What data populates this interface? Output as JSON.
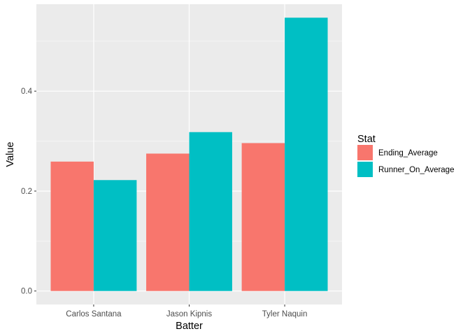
{
  "chart_data": {
    "type": "bar",
    "title": "",
    "xlabel": "Batter",
    "ylabel": "Value",
    "categories": [
      "Carlos Santana",
      "Jason Kipnis",
      "Tyler Naquin"
    ],
    "series": [
      {
        "name": "Ending_Average",
        "color": "#F8766D",
        "values": [
          0.259,
          0.275,
          0.296
        ]
      },
      {
        "name": "Runner_On_Average",
        "color": "#00BFC4",
        "values": [
          0.222,
          0.318,
          0.547
        ]
      }
    ],
    "ylim": [
      -0.027,
      0.574
    ],
    "yticks": [
      0.0,
      0.2,
      0.4
    ],
    "ytick_labels": [
      "0.0",
      "0.2",
      "0.4"
    ],
    "grid": true,
    "legend": {
      "title": "Stat",
      "placement": "right"
    },
    "colors": {
      "panel": "#EBEBEB",
      "grid_major": "#FFFFFF",
      "grid_minor": "#F5F5F5"
    }
  }
}
